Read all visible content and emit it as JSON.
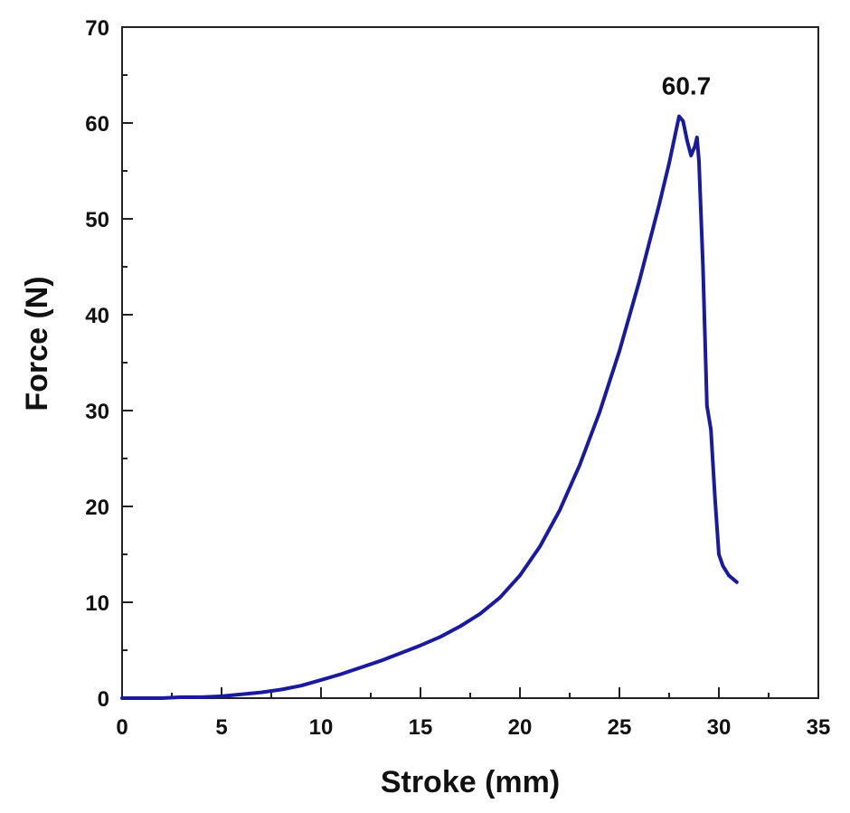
{
  "chart_data": {
    "type": "line",
    "xlabel": "Stroke (mm)",
    "ylabel": "Force (N)",
    "xlim": [
      0,
      35
    ],
    "ylim": [
      0,
      70
    ],
    "xticks": [
      0,
      5,
      10,
      15,
      20,
      25,
      30,
      35
    ],
    "yticks": [
      0,
      10,
      20,
      30,
      40,
      50,
      60,
      70
    ],
    "grid": false,
    "line_color": "#1a1aa0",
    "annotation": {
      "text": "60.7",
      "x": 28.0,
      "y": 60.7
    },
    "series": [
      {
        "x": [
          0,
          2,
          3,
          4,
          5,
          6,
          7,
          8,
          9,
          10,
          11,
          12,
          13,
          14,
          15,
          16,
          17,
          18,
          19,
          20,
          21,
          22,
          23,
          24,
          25,
          26,
          27,
          27.5,
          28.0,
          28.2,
          28.4,
          28.6,
          28.8,
          28.9,
          29.0,
          29.2,
          29.4,
          29.6,
          29.8,
          30.0,
          30.2,
          30.5,
          30.9
        ],
        "y": [
          0,
          0,
          0.1,
          0.1,
          0.2,
          0.4,
          0.6,
          0.9,
          1.3,
          1.9,
          2.5,
          3.2,
          3.9,
          4.7,
          5.5,
          6.4,
          7.5,
          8.8,
          10.5,
          12.8,
          15.8,
          19.6,
          24.3,
          29.8,
          36.2,
          43.5,
          51.5,
          55.8,
          60.7,
          60.2,
          58.2,
          56.6,
          57.6,
          58.5,
          56.0,
          45.0,
          30.5,
          28.0,
          21.0,
          15.0,
          13.8,
          12.8,
          12.1
        ]
      }
    ]
  }
}
